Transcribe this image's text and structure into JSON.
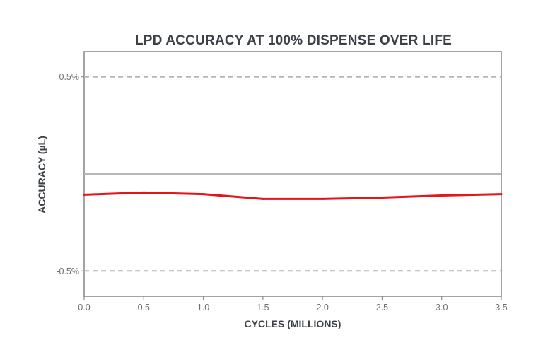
{
  "chart_data": {
    "type": "line",
    "title": "LPD ACCURACY AT 100% DISPENSE OVER LIFE",
    "xlabel": "CYCLES (MILLIONS)",
    "ylabel": "ACCURACY (µL)",
    "xlim": [
      0,
      3.5
    ],
    "ylim": [
      -0.63,
      0.63
    ],
    "x_ticks": [
      0,
      0.5,
      1.0,
      1.5,
      2.0,
      2.5,
      3.0,
      3.5
    ],
    "x_tick_labels": [
      "0.0",
      "0.5",
      "1.0",
      "1.5",
      "2.0",
      "2.5",
      "3.0",
      "3.5"
    ],
    "y_ticks": [
      0.5,
      -0.5
    ],
    "y_tick_labels": [
      "0.5%",
      "-0.5%"
    ],
    "grid": false,
    "reference_lines": [
      {
        "name": "upper-limit",
        "y": 0.5,
        "style": "dashed",
        "color": "#b5b5b5"
      },
      {
        "name": "lower-limit",
        "y": -0.5,
        "style": "dashed",
        "color": "#b5b5b5"
      },
      {
        "name": "zero-line",
        "y": 0,
        "style": "solid",
        "color": "#b8b8b8"
      }
    ],
    "series": [
      {
        "name": "Accuracy",
        "color": "#e8141c",
        "x": [
          0,
          0.5,
          1.0,
          1.5,
          2.0,
          2.5,
          3.0,
          3.5
        ],
        "values": [
          -0.107,
          -0.096,
          -0.104,
          -0.129,
          -0.129,
          -0.122,
          -0.111,
          -0.104
        ]
      }
    ]
  }
}
